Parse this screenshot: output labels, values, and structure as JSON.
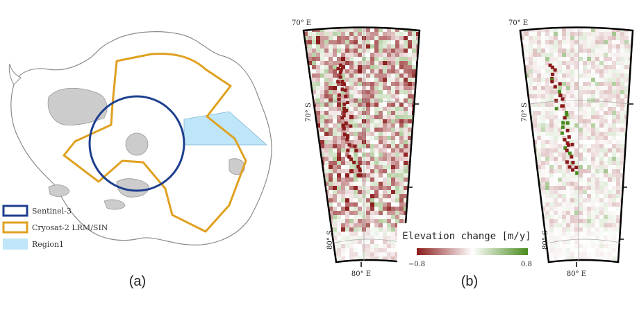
{
  "panel_a": {
    "caption": "(a)",
    "legend": [
      {
        "label": "Sentinel-3",
        "color": "#1e3f8f",
        "kind": "outline"
      },
      {
        "label": "Cryosat-2 LRM/SIN",
        "color": "#e0a020",
        "kind": "outline"
      },
      {
        "label": "Region1",
        "color": "#bfe6f8",
        "kind": "fill"
      }
    ],
    "colors": {
      "ice_shelf": "#cccccc",
      "land": "#ffffff",
      "coast": "#888888"
    }
  },
  "panel_b": {
    "caption": "(b)",
    "maps": [
      {
        "lon_top": "70° E",
        "lat_mid": "70° S",
        "lat_bot": "80° S",
        "lon_bottom": "80° E",
        "seed": 7,
        "edge": 1
      },
      {
        "lon_top": "70° E",
        "lat_mid": "70° S",
        "lat_bot": "80° S",
        "lon_bottom": "80° E",
        "seed": 21,
        "edge": 2
      }
    ],
    "colorbar": {
      "title": "Elevation change [m/y]",
      "min_label": "−0.8",
      "max_label": "0.8",
      "min": -0.8,
      "max": 0.8,
      "colors": [
        "#8b1a1a",
        "#ffffff",
        "#4a8c1f"
      ]
    }
  }
}
